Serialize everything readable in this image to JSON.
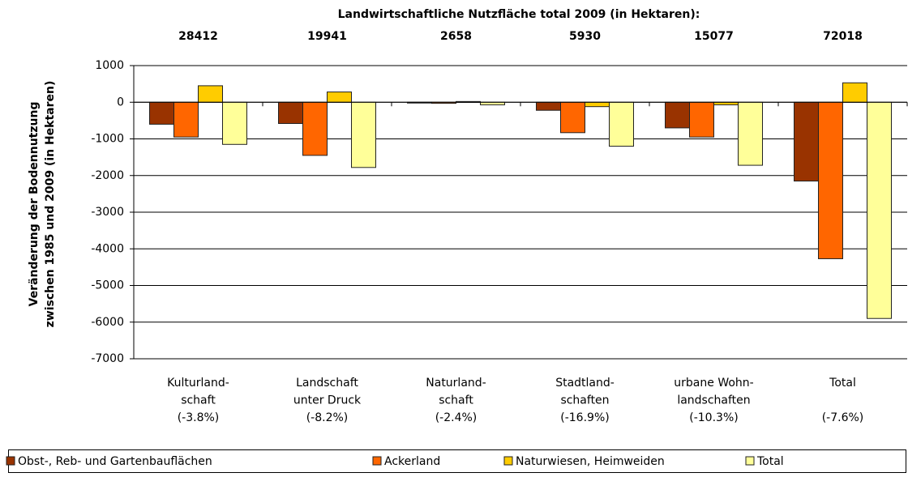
{
  "chart_data": {
    "type": "bar",
    "top_title": "Landwirtschaftliche Nutzfläche total 2009 (in Hektaren):",
    "top_values": [
      28412,
      19941,
      2658,
      5930,
      15077,
      72018
    ],
    "y_label": [
      "Veränderung der Bodennutzung",
      "zwischen 1985 und 2009 (in Hektaren)"
    ],
    "categories": [
      [
        "Kulturland-",
        "schaft",
        "(-3.8%)"
      ],
      [
        "Landschaft",
        "unter Druck",
        "(-8.2%)"
      ],
      [
        "Naturland-",
        "schaft",
        "(-2.4%)"
      ],
      [
        "Stadtland-",
        "schaften",
        "(-16.9%)"
      ],
      [
        "urbane Wohn-",
        "landschaften",
        "(-10.3%)"
      ],
      [
        "Total",
        "",
        "(-7.6%)"
      ]
    ],
    "series": [
      {
        "name": "Obst-, Reb- und Gartenbauflächen",
        "color": "#993300",
        "values": [
          -600,
          -580,
          -20,
          -220,
          -700,
          -2150
        ]
      },
      {
        "name": "Ackerland",
        "color": "#ff6600",
        "values": [
          -950,
          -1450,
          -30,
          -830,
          -950,
          -4270
        ]
      },
      {
        "name": "Naturwiesen, Heimweiden",
        "color": "#ffcc00",
        "values": [
          450,
          280,
          20,
          -120,
          -70,
          530
        ]
      },
      {
        "name": "Total",
        "color": "#ffff99",
        "values": [
          -1150,
          -1780,
          -70,
          -1200,
          -1720,
          -5900
        ]
      }
    ],
    "ylim": [
      -7000,
      1000
    ],
    "yticks": [
      -7000,
      -6000,
      -5000,
      -4000,
      -3000,
      -2000,
      -1000,
      0,
      1000
    ],
    "grid": true,
    "legend": "bottom"
  }
}
